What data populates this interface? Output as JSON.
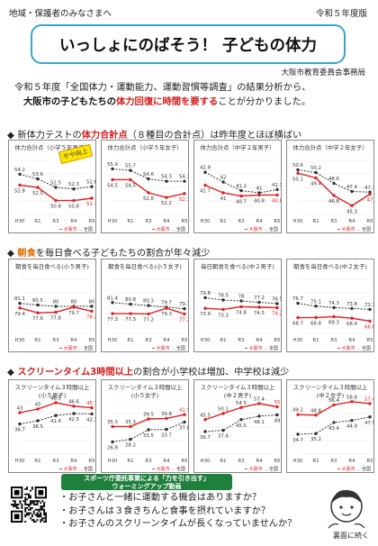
{
  "header": {
    "left": "地域・保護者のみなさまへ",
    "right": "令和５年度版"
  },
  "title": "いっしょにのばそう！ 子どもの体力",
  "author": "大阪市教育委員会事務局",
  "intro": {
    "line1": "令和５年度「全国体力・運動能力、運動習慣等調査」の結果分析から、",
    "line2_bold": "大阪市の子どもたちの",
    "line2_red": "体力回復に時間を要する",
    "line2_end": "ことが分かりました。"
  },
  "section1": {
    "pre": "新体力テストの",
    "red": "体力合計点",
    "post": "（８種目の合計点）は昨年度とほぼ横ばい"
  },
  "section2": {
    "pre": "",
    "orange": "朝食",
    "post": "を毎日食べる子どもたちの割合が年々減少"
  },
  "section3": {
    "pre": "",
    "red": "スクリーンタイム3時間以上",
    "post": "の割合が小学校は増加、中学校は減少"
  },
  "callout": "やや向上",
  "banner": {
    "line1": "スポーツ庁委託事業による「力を引き出す」",
    "line2": "ウォーミングアップ動画"
  },
  "bullets": [
    "・お子さんと一緒に運動する機会はありますか？",
    "・お子さんは３食きちんと食事を摂れていますか？",
    "・お子さんのスクリーンタイムが長くなっていませんか？"
  ],
  "continue": "裏面に続く",
  "legend": {
    "osaka": "大阪市",
    "national": "全国"
  },
  "colors": {
    "osaka": "#e02020",
    "national": "#333333",
    "frame": "#38a6c9",
    "banner": "#1f7f3c"
  },
  "chart_data": [
    {
      "type": "line",
      "title": "体力合計点（小学５年男子）",
      "x": [
        "H30",
        "R1",
        "R3",
        "R4",
        "R5"
      ],
      "series": [
        {
          "name": "全国",
          "values": [
            54.2,
            53.6,
            52.5,
            52.3,
            52.6
          ]
        },
        {
          "name": "大阪市",
          "values": [
            52.8,
            52.5,
            50.8,
            50.8,
            51.1
          ]
        }
      ],
      "ylim": [
        49,
        56
      ]
    },
    {
      "type": "line",
      "title": "体力合計点（小学５年女子）",
      "x": [
        "H30",
        "R1",
        "R3",
        "R4",
        "R5"
      ],
      "series": [
        {
          "name": "全国",
          "values": [
            55.9,
            55.7,
            54.6,
            54.3,
            54.3
          ]
        },
        {
          "name": "大阪市",
          "values": [
            54.5,
            54.5,
            52.8,
            52.2,
            52.7
          ]
        }
      ],
      "ylim": [
        50,
        57
      ]
    },
    {
      "type": "line",
      "title": "体力合計点（中学２年男子）",
      "x": [
        "H30",
        "R1",
        "R3",
        "R4",
        "R5"
      ],
      "series": [
        {
          "name": "全国",
          "values": [
            42.9,
            42.0,
            41.2,
            41.0,
            41.3
          ]
        },
        {
          "name": "大阪市",
          "values": [
            41.7,
            41.0,
            40.7,
            40.8,
            40.8
          ]
        }
      ],
      "ylim": [
        39,
        44
      ]
    },
    {
      "type": "line",
      "title": "体力合計点（中学２年女子）",
      "x": [
        "H30",
        "R1",
        "R3",
        "R4",
        "R5"
      ],
      "series": [
        {
          "name": "全国",
          "values": [
            50.6,
            50.2,
            48.6,
            47.4,
            47.3
          ]
        },
        {
          "name": "大阪市",
          "values": [
            50.1,
            49.4,
            46.8,
            45.3,
            47.0
          ]
        }
      ],
      "ylim": [
        44,
        52
      ]
    },
    {
      "type": "line",
      "title": "朝食を毎日食べる(小５男子)",
      "x": [
        "H30",
        "R1",
        "R3",
        "R4",
        "R5"
      ],
      "series": [
        {
          "name": "全国",
          "values": [
            81.1,
            80.5,
            80.0,
            80.0,
            80.0
          ]
        },
        {
          "name": "大阪市",
          "values": [
            79.4,
            77.6,
            77.8,
            79.7,
            78.2
          ]
        }
      ],
      "ylim": [
        70,
        90
      ]
    },
    {
      "type": "line",
      "title": "朝食を毎日食べる(小５女子)",
      "x": [
        "H30",
        "R1",
        "R3",
        "R4",
        "R5"
      ],
      "series": [
        {
          "name": "全国",
          "values": [
            81.4,
            80.8,
            80.3,
            79.7,
            79.1
          ]
        },
        {
          "name": "大阪市",
          "values": [
            77.3,
            77.3,
            77.2,
            79.3,
            77.2
          ]
        }
      ],
      "ylim": [
        70,
        90
      ]
    },
    {
      "type": "line",
      "title": "毎日朝食を食べる(中２男子)",
      "x": [
        "H30",
        "R1",
        "R3",
        "R4",
        "R5"
      ],
      "series": [
        {
          "name": "全国",
          "values": [
            79.8,
            78.5,
            78.0,
            77.2,
            76.5
          ]
        },
        {
          "name": "大阪市",
          "values": [
            73.9,
            73.3,
            74.8,
            74.5,
            74.2
          ]
        }
      ],
      "ylim": [
        60,
        90
      ]
    },
    {
      "type": "line",
      "title": "朝食を毎日食べる(中２女子)",
      "x": [
        "H30",
        "R1",
        "R3",
        "R4",
        "R5"
      ],
      "series": [
        {
          "name": "全国",
          "values": [
            76.7,
            75.1,
            74.3,
            73.8,
            73.3
          ]
        },
        {
          "name": "大阪市",
          "values": [
            68.7,
            68.8,
            69.3,
            68.4,
            66.8
          ]
        }
      ],
      "ylim": [
        60,
        90
      ]
    },
    {
      "type": "line",
      "title": "スクリーンタイム３時間以上(小５男子)",
      "x": [
        "H30",
        "R1",
        "R3",
        "R4",
        "R5"
      ],
      "series": [
        {
          "name": "大阪市",
          "values": [
            43.0,
            45.0,
            48.5,
            46.6,
            45.7
          ]
        },
        {
          "name": "全国",
          "values": [
            36.7,
            38.5,
            41.4,
            42.5,
            42.3
          ]
        }
      ],
      "ylim": [
        20,
        50
      ]
    },
    {
      "type": "line",
      "title": "スクリーンタイム３時間以上(小５女子)",
      "x": [
        "H30",
        "R1",
        "R3",
        "R4",
        "R5"
      ],
      "series": [
        {
          "name": "大阪市",
          "values": [
            35.3,
            35.3,
            39.5,
            39.8,
            41.9
          ]
        },
        {
          "name": "全国",
          "values": [
            26.8,
            28.2,
            33.5,
            33.7,
            37.8
          ]
        }
      ],
      "ylim": [
        20,
        50
      ]
    },
    {
      "type": "line",
      "title": "スクリーンタイム３時間以上(中２男子)",
      "x": [
        "H30",
        "R1",
        "R3",
        "R4",
        "R5"
      ],
      "series": [
        {
          "name": "大阪市",
          "values": [
            45.5,
            50.1,
            54.5,
            57.4,
            55.0
          ]
        },
        {
          "name": "全国",
          "values": [
            36.7,
            37.6,
            45.5,
            48.1,
            49.0
          ]
        }
      ],
      "ylim": [
        20,
        60
      ]
    },
    {
      "type": "line",
      "title": "スクリーンタイム３時間以上(中２女子)",
      "x": [
        "H30",
        "R1",
        "R3",
        "R4",
        "R5"
      ],
      "series": [
        {
          "name": "大阪市",
          "values": [
            49.2,
            48.8,
            56.4,
            58.8,
            57.4
          ]
        },
        {
          "name": "全国",
          "values": [
            34.7,
            35.2,
            43.4,
            44.9,
            47.5
          ]
        }
      ],
      "ylim": [
        20,
        60
      ]
    }
  ]
}
